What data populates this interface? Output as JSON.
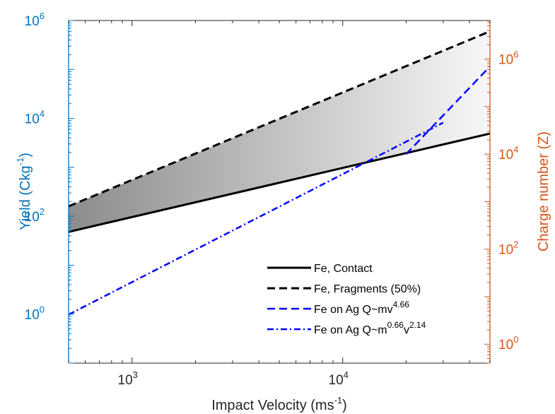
{
  "chart_data": {
    "type": "line",
    "x": {
      "label": "Impact Velocity (ms",
      "label_sup": "-1",
      "label_end": ")",
      "scale": "log",
      "lim": [
        500,
        50000
      ],
      "ticks": [
        {
          "value": 1000,
          "base": "10",
          "exp": "3"
        },
        {
          "value": 10000,
          "base": "10",
          "exp": "4"
        }
      ]
    },
    "y_left": {
      "label": "Yield (Ckg",
      "label_sup": "-1",
      "label_end": ")",
      "scale": "log",
      "lim": [
        0.1,
        1000000
      ],
      "color": "#0072BD",
      "ticks": [
        {
          "value": 1,
          "base": "10",
          "exp": "0"
        },
        {
          "value": 100,
          "base": "10",
          "exp": "2"
        },
        {
          "value": 10000,
          "base": "10",
          "exp": "4"
        },
        {
          "value": 1000000,
          "base": "10",
          "exp": "6"
        }
      ]
    },
    "y_right": {
      "label": "Charge number (Z)",
      "scale": "log",
      "lim": [
        0.4,
        6500000
      ],
      "color": "#D95319",
      "ticks": [
        {
          "value": 1,
          "base": "10",
          "exp": "0"
        },
        {
          "value": 100,
          "base": "10",
          "exp": "2"
        },
        {
          "value": 10000,
          "base": "10",
          "exp": "4"
        },
        {
          "value": 1000000,
          "base": "10",
          "exp": "6"
        }
      ]
    },
    "series": [
      {
        "name": "Fe, Contact",
        "axis": "left",
        "style": "solid",
        "color": "#000000",
        "x": [
          500,
          50000
        ],
        "y": [
          48,
          4900
        ]
      },
      {
        "name": "Fe, Fragments (50%)",
        "axis": "left",
        "style": "dashed",
        "color": "#000000",
        "x": [
          500,
          50000
        ],
        "y": [
          160,
          600000
        ]
      },
      {
        "name": "Fe on Ag Q~mv",
        "name_sup": "4.66",
        "axis": "right",
        "style": "dashed",
        "color": "#0000FF",
        "x": [
          20000,
          50000
        ],
        "y": [
          10000,
          700000
        ]
      },
      {
        "name": "Fe on Ag Q~m",
        "name_sup": "0.66",
        "name_mid": "v",
        "name_sup2": "2.14",
        "axis": "right",
        "style": "dashdot",
        "color": "#0000FF",
        "x": [
          500,
          30000
        ],
        "y": [
          4.2,
          46000
        ]
      }
    ],
    "shaded_region": {
      "between": [
        "Fe, Contact",
        "Fe, Fragments (50%)"
      ],
      "gradient": [
        "#8c8c8c",
        "#f7f7f7"
      ]
    },
    "legend_position": "bottom-right",
    "grid": false
  }
}
